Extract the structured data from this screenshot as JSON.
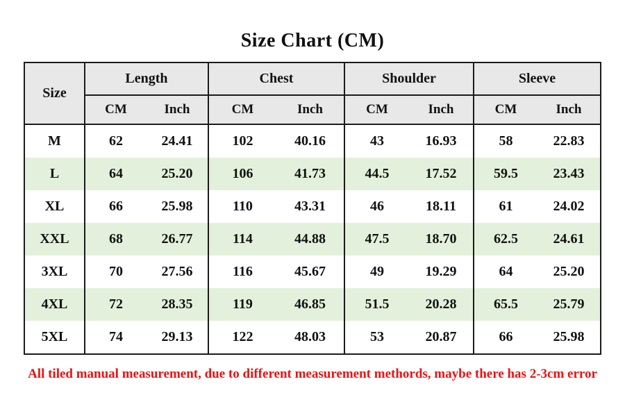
{
  "footnote": "All tiled manual measurement, due to different measurement methords, maybe there has 2-3cm error",
  "colors": {
    "header_bg": "#e8e8e8",
    "stripe_bg": "#e3f1dc",
    "border": "#1b1b1b",
    "note_red": "#ee1111"
  },
  "chart_data": {
    "type": "table",
    "title": "Size Chart (CM)",
    "corner_header": "Size",
    "column_groups": [
      {
        "label": "Length",
        "subcolumns": [
          "CM",
          "Inch"
        ]
      },
      {
        "label": "Chest",
        "subcolumns": [
          "CM",
          "Inch"
        ]
      },
      {
        "label": "Shoulder",
        "subcolumns": [
          "CM",
          "Inch"
        ]
      },
      {
        "label": "Sleeve",
        "subcolumns": [
          "CM",
          "Inch"
        ]
      }
    ],
    "rows": [
      {
        "size": "M",
        "values": [
          "62",
          "24.41",
          "102",
          "40.16",
          "43",
          "16.93",
          "58",
          "22.83"
        ]
      },
      {
        "size": "L",
        "values": [
          "64",
          "25.20",
          "106",
          "41.73",
          "44.5",
          "17.52",
          "59.5",
          "23.43"
        ]
      },
      {
        "size": "XL",
        "values": [
          "66",
          "25.98",
          "110",
          "43.31",
          "46",
          "18.11",
          "61",
          "24.02"
        ]
      },
      {
        "size": "XXL",
        "values": [
          "68",
          "26.77",
          "114",
          "44.88",
          "47.5",
          "18.70",
          "62.5",
          "24.61"
        ]
      },
      {
        "size": "3XL",
        "values": [
          "70",
          "27.56",
          "116",
          "45.67",
          "49",
          "19.29",
          "64",
          "25.20"
        ]
      },
      {
        "size": "4XL",
        "values": [
          "72",
          "28.35",
          "119",
          "46.85",
          "51.5",
          "20.28",
          "65.5",
          "25.79"
        ]
      },
      {
        "size": "5XL",
        "values": [
          "74",
          "29.13",
          "122",
          "48.03",
          "53",
          "20.87",
          "66",
          "25.98"
        ]
      }
    ]
  }
}
